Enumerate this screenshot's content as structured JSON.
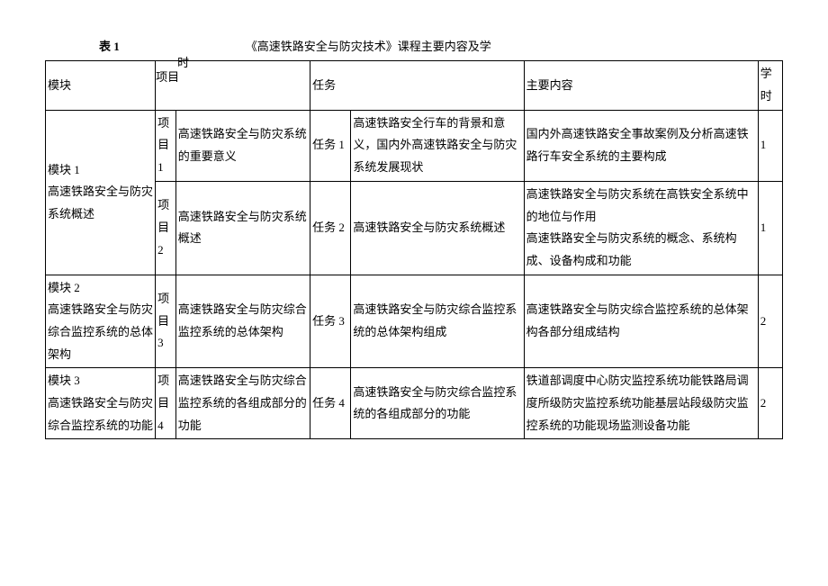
{
  "title": {
    "label": "表 1",
    "text": "《高速铁路安全与防灾技术》课程主要内容及学"
  },
  "headers": {
    "module": "模块",
    "project_hang": "项目",
    "shi_hang": "时",
    "task": "任务",
    "main_content": "主要内容",
    "hours": "学时"
  },
  "rows": [
    {
      "module": "模块 1\n高速铁路安全与防灾系统概述",
      "subrows": [
        {
          "project": "项目1",
          "project_title": "高速铁路安全与防灾系统的重要意义",
          "task": "任务 1",
          "task_desc": "高速铁路安全行车的背景和意义，国内外高速铁路安全与防灾系统发展现状",
          "content": "国内外高速铁路安全事故案例及分析高速铁路行车安全系统的主要构成",
          "hours": "1"
        },
        {
          "project": "项目2",
          "project_title": "高速铁路安全与防灾系统概述",
          "task": "任务 2",
          "task_desc": "高速铁路安全与防灾系统概述",
          "content": "高速铁路安全与防灾系统在高铁安全系统中的地位与作用\n高速铁路安全与防灾系统的概念、系统构成、设备构成和功能",
          "hours": "1"
        }
      ]
    },
    {
      "module": "模块 2\n高速铁路安全与防灾综合监控系统的总体架构",
      "subrows": [
        {
          "project": "项目3",
          "project_title": "高速铁路安全与防灾综合监控系统的总体架构",
          "task": "任务 3",
          "task_desc": "高速铁路安全与防灾综合监控系统的总体架构组成",
          "content": "高速铁路安全与防灾综合监控系统的总体架构各部分组成结构",
          "hours": "2"
        }
      ]
    },
    {
      "module": "模块 3\n高速铁路安全与防灾综合监控系统的功能",
      "subrows": [
        {
          "project": "项目4",
          "project_title": "高速铁路安全与防灾综合监控系统的各组成部分的功能",
          "task": "任务 4",
          "task_desc": "高速铁路安全与防灾综合监控系统的各组成部分的功能",
          "content": "铁道部调度中心防灾监控系统功能铁路局调度所级防灾监控系统功能基层站段级防灾监控系统的功能现场监测设备功能",
          "hours": "2"
        }
      ]
    }
  ],
  "colors": {
    "background": "#ffffff",
    "text": "#000000",
    "border": "#000000"
  },
  "font": {
    "family": "SimSun",
    "size_pt": 10
  }
}
